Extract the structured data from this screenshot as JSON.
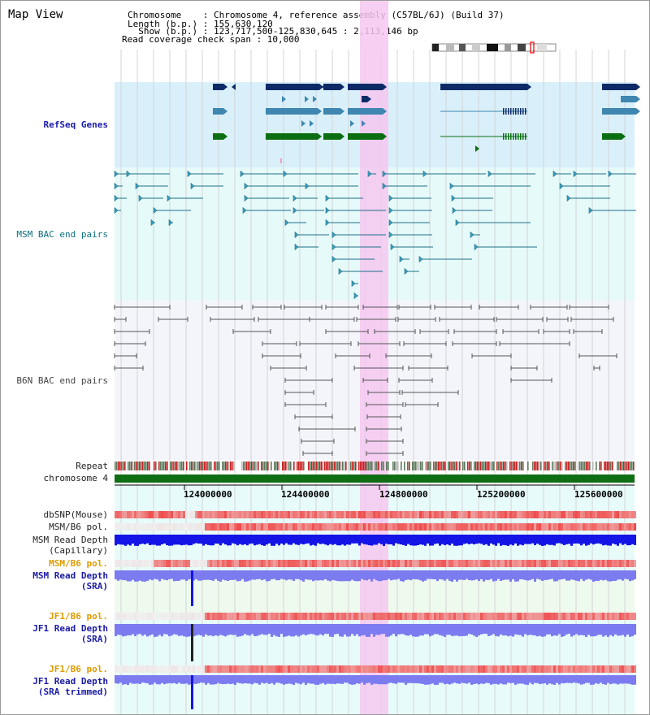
{
  "title": "Map View",
  "header": {
    "chromosome": "Chromosome    : Chromosome 4, reference assembly (C57BL/6J) (Build 37)",
    "length": "Length (b.p.) : 155,630,120",
    "show": "  Show (b.p.) : 123,717,500-125,830,645 : 2,113,146 bp",
    "coverage": "Read coverage check span : 10,000"
  },
  "labels": {
    "refseq": "RefSeq Genes",
    "msm_bac": "MSM BAC end pairs",
    "b6n_bac": "B6N BAC end pairs",
    "repeat": "Repeat",
    "chromosome": "chromosome 4",
    "dbsnp": "dbSNP(Mouse)",
    "msm_pol": "MSM/B6 pol.",
    "msm_depth_cap": "MSM Read Depth\n(Capillary)",
    "msm_pol_sra": "MSM/B6 pol.",
    "msm_depth_sra": "MSM Read Depth\n(SRA)",
    "jf1_pol": "JF1/B6 pol.",
    "jf1_depth": "JF1 Read Depth\n(SRA)",
    "jf1_pol_trim": "JF1/B6 pol.",
    "jf1_depth_trim": "JF1 Read Depth\n(SRA trimmed)"
  },
  "axis": {
    "ticks": [
      "124000000",
      "124400000",
      "124800000",
      "125200000",
      "125600000"
    ]
  },
  "colors": {
    "highlight": "#f4c7f0",
    "refseq_bg": "#d9f0fb",
    "msm_bg": "#e6fafa",
    "b6n_bg": "#f4f5fb",
    "gene_dark": "#0d2a66",
    "gene_mid": "#3f86b0",
    "gene_green": "#0c6e12",
    "chromosome_bar": "#0f6e14",
    "depth_blue": "#1414e6",
    "depth_light": "#7c7cf0",
    "pol_red": "#ef3f3f"
  }
}
